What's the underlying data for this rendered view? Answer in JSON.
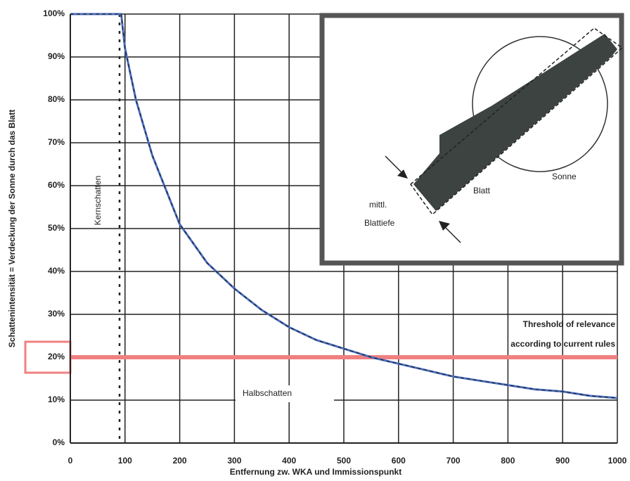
{
  "chart_data": {
    "type": "line",
    "y_label": "Schattenintensität = Verdeckung der Sonne durch das Blatt",
    "x_label": "Entfernung zw. WKA und Immissionspunkt",
    "x": [
      0,
      50,
      93,
      100,
      120,
      150,
      200,
      250,
      300,
      350,
      400,
      450,
      500,
      550,
      600,
      650,
      700,
      750,
      800,
      850,
      900,
      950,
      1000
    ],
    "series": [
      {
        "color": "#4a6fc4",
        "values": [
          100,
          100,
          100,
          92,
          80,
          67,
          51,
          42,
          36,
          31,
          27,
          24,
          22,
          20,
          18.5,
          17,
          15.5,
          14.5,
          13.5,
          12.5,
          12,
          11,
          10.5
        ]
      }
    ],
    "xlim": [
      0,
      1000
    ],
    "xticks": [
      0,
      100,
      200,
      300,
      400,
      500,
      600,
      700,
      800,
      900,
      1000
    ],
    "ylim": [
      0,
      100
    ],
    "yticks": [
      {
        "value": 0,
        "label": "0%"
      },
      {
        "value": 10,
        "label": "10%"
      },
      {
        "value": 20,
        "label": "20%"
      },
      {
        "value": 30,
        "label": "30%"
      },
      {
        "value": 40,
        "label": "40%"
      },
      {
        "value": 50,
        "label": "50%"
      },
      {
        "value": 60,
        "label": "60%"
      },
      {
        "value": 70,
        "label": "70%"
      },
      {
        "value": 80,
        "label": "80%"
      },
      {
        "value": 90,
        "label": "90%"
      },
      {
        "value": 100,
        "label": "100%"
      }
    ],
    "grid": true,
    "kernschatten": {
      "label": "Kernschatten",
      "x": 90
    },
    "halbschatten": "Halbschatten",
    "threshold": {
      "value": 20,
      "color": "#f08080",
      "lines": [
        "Threshold of relevance",
        "according to current rules"
      ]
    },
    "inset": {
      "sonne": "Sonne",
      "blatt": "Blatt",
      "tiefe": [
        "mittl.",
        "Blattiefe"
      ]
    }
  }
}
